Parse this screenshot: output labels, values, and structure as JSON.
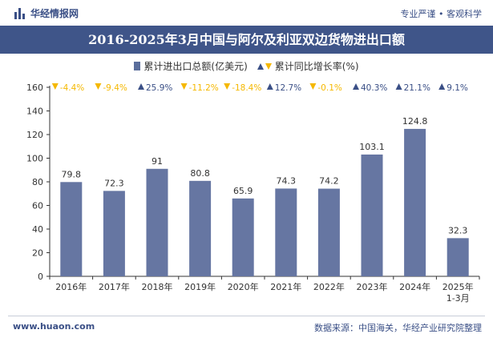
{
  "header": {
    "brand": "华经情报网",
    "tagline": "专业严谨 • 客观科学"
  },
  "title": "2016-2025年3月中国与阿尔及利亚双边货物进出口额",
  "legend": {
    "series1": "累计进出口总额(亿美元)",
    "series2": "累计同比增长率(%)"
  },
  "footer": {
    "website": "www.huaon.com",
    "source": "数据来源：中国海关，华经产业研究院整理"
  },
  "colors": {
    "bar": "#6676a2",
    "title_bg": "#3f5589",
    "up": "#3a4f86",
    "down": "#f5b800"
  },
  "chart_data": {
    "type": "bar",
    "categories": [
      "2016年",
      "2017年",
      "2018年",
      "2019年",
      "2020年",
      "2021年",
      "2022年",
      "2023年",
      "2024年",
      "2025年\n1-3月"
    ],
    "values": [
      79.8,
      72.3,
      91,
      80.8,
      65.9,
      74.3,
      74.2,
      103.1,
      124.8,
      32.3
    ],
    "value_labels": [
      "79.8",
      "72.3",
      "91",
      "80.8",
      "65.9",
      "74.3",
      "74.2",
      "103.1",
      "124.8",
      "32.3"
    ],
    "growth": [
      {
        "label": "-4.4%",
        "dir": "down"
      },
      {
        "label": "-9.4%",
        "dir": "down"
      },
      {
        "label": "25.9%",
        "dir": "up"
      },
      {
        "label": "-11.2%",
        "dir": "down"
      },
      {
        "label": "-18.4%",
        "dir": "down"
      },
      {
        "label": "12.7%",
        "dir": "up"
      },
      {
        "label": "-0.1%",
        "dir": "down"
      },
      {
        "label": "40.3%",
        "dir": "up"
      },
      {
        "label": "21.1%",
        "dir": "up"
      },
      {
        "label": "9.1%",
        "dir": "up"
      }
    ],
    "ylim": [
      0,
      160
    ],
    "yticks": [
      0,
      20,
      40,
      60,
      80,
      100,
      120,
      140,
      160
    ],
    "title": "2016-2025年3月中国与阿尔及利亚双边货物进出口额",
    "xlabel": "",
    "ylabel": ""
  }
}
